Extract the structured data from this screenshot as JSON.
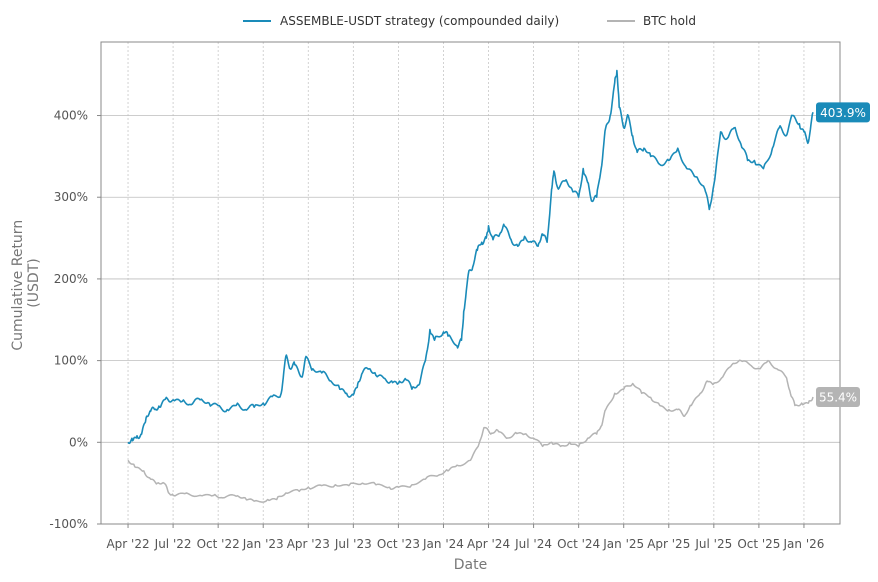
{
  "chart_data": {
    "type": "line",
    "title": "",
    "xlabel": "Date",
    "ylabel_lines": [
      "Cumulative Return",
      "(USDT)"
    ],
    "ylim": [
      -100,
      490
    ],
    "yticks": [
      -100,
      0,
      100,
      200,
      300,
      400
    ],
    "ytick_labels": [
      "-100%",
      "0%",
      "100%",
      "200%",
      "300%",
      "400%"
    ],
    "xlim": [
      -0.6,
      15.8
    ],
    "xtick_positions": [
      0,
      1,
      2,
      3,
      4,
      5,
      6,
      7,
      8,
      9,
      10,
      11,
      12,
      13,
      14,
      15
    ],
    "xtick_labels": [
      "Apr '22",
      "Jul '22",
      "Oct '22",
      "Jan '23",
      "Apr '23",
      "Jul '23",
      "Oct '23",
      "Jan '24",
      "Apr '24",
      "Jul '24",
      "Oct '24",
      "Jan '25",
      "Apr '25",
      "Jul '25",
      "Oct '25",
      "Jan '26"
    ],
    "grid": true,
    "legend_position": "top-center",
    "series": [
      {
        "name": "ASSEMBLE-USDT strategy (compounded daily)",
        "color": "#1a8bb9",
        "final_label": "403.9%",
        "points": [
          [
            0,
            0
          ],
          [
            0.1,
            2
          ],
          [
            0.2,
            8
          ],
          [
            0.3,
            10
          ],
          [
            0.4,
            30
          ],
          [
            0.5,
            38
          ],
          [
            0.6,
            40
          ],
          [
            0.7,
            43
          ],
          [
            0.85,
            55
          ],
          [
            1.0,
            52
          ],
          [
            1.2,
            50
          ],
          [
            1.4,
            46
          ],
          [
            1.6,
            52
          ],
          [
            1.8,
            48
          ],
          [
            2.0,
            45
          ],
          [
            2.2,
            40
          ],
          [
            2.4,
            45
          ],
          [
            2.6,
            40
          ],
          [
            2.8,
            43
          ],
          [
            3.0,
            48
          ],
          [
            3.2,
            56
          ],
          [
            3.4,
            60
          ],
          [
            3.5,
            105
          ],
          [
            3.6,
            90
          ],
          [
            3.7,
            95
          ],
          [
            3.85,
            80
          ],
          [
            3.95,
            105
          ],
          [
            4.1,
            90
          ],
          [
            4.3,
            85
          ],
          [
            4.5,
            75
          ],
          [
            4.7,
            65
          ],
          [
            4.85,
            60
          ],
          [
            5.0,
            58
          ],
          [
            5.1,
            72
          ],
          [
            5.2,
            85
          ],
          [
            5.35,
            90
          ],
          [
            5.5,
            82
          ],
          [
            5.7,
            78
          ],
          [
            5.85,
            75
          ],
          [
            6.0,
            72
          ],
          [
            6.15,
            78
          ],
          [
            6.3,
            65
          ],
          [
            6.45,
            70
          ],
          [
            6.6,
            100
          ],
          [
            6.7,
            138
          ],
          [
            6.8,
            125
          ],
          [
            7.0,
            135
          ],
          [
            7.1,
            130
          ],
          [
            7.3,
            118
          ],
          [
            7.4,
            125
          ],
          [
            7.45,
            160
          ],
          [
            7.55,
            205
          ],
          [
            7.65,
            215
          ],
          [
            7.75,
            235
          ],
          [
            7.85,
            245
          ],
          [
            7.95,
            250
          ],
          [
            8.0,
            265
          ],
          [
            8.1,
            248
          ],
          [
            8.25,
            255
          ],
          [
            8.35,
            265
          ],
          [
            8.5,
            248
          ],
          [
            8.65,
            240
          ],
          [
            8.8,
            252
          ],
          [
            8.95,
            245
          ],
          [
            9.1,
            240
          ],
          [
            9.2,
            255
          ],
          [
            9.3,
            245
          ],
          [
            9.4,
            310
          ],
          [
            9.45,
            332
          ],
          [
            9.55,
            310
          ],
          [
            9.7,
            320
          ],
          [
            9.85,
            310
          ],
          [
            10.0,
            300
          ],
          [
            10.1,
            335
          ],
          [
            10.2,
            318
          ],
          [
            10.3,
            295
          ],
          [
            10.4,
            300
          ],
          [
            10.5,
            335
          ],
          [
            10.6,
            385
          ],
          [
            10.7,
            400
          ],
          [
            10.8,
            440
          ],
          [
            10.85,
            455
          ],
          [
            10.9,
            410
          ],
          [
            11.0,
            385
          ],
          [
            11.1,
            400
          ],
          [
            11.2,
            375
          ],
          [
            11.3,
            355
          ],
          [
            11.45,
            360
          ],
          [
            11.6,
            350
          ],
          [
            11.8,
            340
          ],
          [
            12.0,
            345
          ],
          [
            12.2,
            360
          ],
          [
            12.4,
            335
          ],
          [
            12.6,
            325
          ],
          [
            12.8,
            310
          ],
          [
            12.9,
            285
          ],
          [
            13.0,
            315
          ],
          [
            13.15,
            380
          ],
          [
            13.3,
            372
          ],
          [
            13.45,
            385
          ],
          [
            13.6,
            365
          ],
          [
            13.75,
            345
          ],
          [
            13.9,
            345
          ],
          [
            14.1,
            335
          ],
          [
            14.3,
            360
          ],
          [
            14.45,
            385
          ],
          [
            14.6,
            375
          ],
          [
            14.75,
            400
          ],
          [
            14.9,
            390
          ],
          [
            15.0,
            380
          ],
          [
            15.1,
            368
          ],
          [
            15.2,
            403.9
          ]
        ]
      },
      {
        "name": "BTC hold",
        "color": "#b4b4b4",
        "final_label": "55.4%",
        "points": [
          [
            0,
            -22
          ],
          [
            0.15,
            -30
          ],
          [
            0.35,
            -35
          ],
          [
            0.5,
            -45
          ],
          [
            0.65,
            -50
          ],
          [
            0.8,
            -50
          ],
          [
            0.9,
            -62
          ],
          [
            1.0,
            -65
          ],
          [
            1.3,
            -62
          ],
          [
            1.6,
            -65
          ],
          [
            1.9,
            -65
          ],
          [
            2.1,
            -68
          ],
          [
            2.4,
            -66
          ],
          [
            2.6,
            -68
          ],
          [
            2.8,
            -72
          ],
          [
            3.1,
            -70
          ],
          [
            3.3,
            -70
          ],
          [
            3.5,
            -62
          ],
          [
            3.8,
            -60
          ],
          [
            4.0,
            -55
          ],
          [
            4.3,
            -53
          ],
          [
            4.6,
            -52
          ],
          [
            4.9,
            -53
          ],
          [
            5.2,
            -50
          ],
          [
            5.5,
            -52
          ],
          [
            5.8,
            -55
          ],
          [
            6.0,
            -55
          ],
          [
            6.3,
            -52
          ],
          [
            6.6,
            -45
          ],
          [
            6.9,
            -40
          ],
          [
            7.1,
            -35
          ],
          [
            7.3,
            -28
          ],
          [
            7.6,
            -22
          ],
          [
            7.8,
            0
          ],
          [
            7.9,
            18
          ],
          [
            8.05,
            10
          ],
          [
            8.2,
            15
          ],
          [
            8.4,
            5
          ],
          [
            8.6,
            12
          ],
          [
            8.8,
            10
          ],
          [
            9.0,
            5
          ],
          [
            9.2,
            -5
          ],
          [
            9.4,
            0
          ],
          [
            9.6,
            -5
          ],
          [
            9.8,
            0
          ],
          [
            10.0,
            -5
          ],
          [
            10.2,
            5
          ],
          [
            10.4,
            10
          ],
          [
            10.5,
            20
          ],
          [
            10.6,
            40
          ],
          [
            10.8,
            60
          ],
          [
            11.0,
            65
          ],
          [
            11.2,
            72
          ],
          [
            11.4,
            60
          ],
          [
            11.6,
            55
          ],
          [
            11.8,
            45
          ],
          [
            12.0,
            40
          ],
          [
            12.2,
            40
          ],
          [
            12.35,
            32
          ],
          [
            12.5,
            45
          ],
          [
            12.7,
            60
          ],
          [
            12.85,
            75
          ],
          [
            13.0,
            72
          ],
          [
            13.2,
            80
          ],
          [
            13.4,
            95
          ],
          [
            13.6,
            100
          ],
          [
            13.8,
            95
          ],
          [
            14.0,
            90
          ],
          [
            14.2,
            100
          ],
          [
            14.4,
            90
          ],
          [
            14.6,
            80
          ],
          [
            14.7,
            60
          ],
          [
            14.8,
            45
          ],
          [
            14.95,
            48
          ],
          [
            15.1,
            48
          ],
          [
            15.2,
            55.4
          ]
        ]
      }
    ]
  }
}
